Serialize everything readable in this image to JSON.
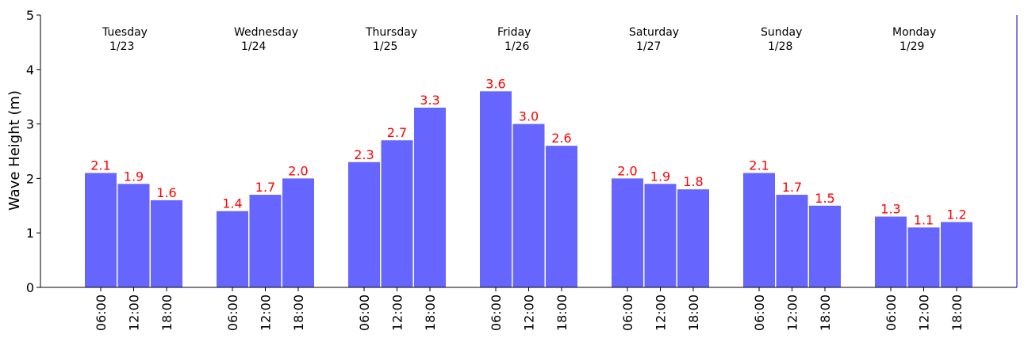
{
  "chart_data": {
    "type": "bar",
    "title": "",
    "xlabel": "",
    "ylabel": "Wave Height (m)",
    "ylim": [
      0,
      5
    ],
    "yticks": [
      "0",
      "1",
      "2",
      "3",
      "4",
      "5"
    ],
    "grid": false,
    "days": [
      {
        "name": "Tuesday",
        "date": "1/23",
        "times": [
          "06:00",
          "12:00",
          "18:00"
        ],
        "values": [
          2.1,
          1.9,
          1.6
        ],
        "labels": [
          "2.1",
          "1.9",
          "1.6"
        ]
      },
      {
        "name": "Wednesday",
        "date": "1/24",
        "times": [
          "06:00",
          "12:00",
          "18:00"
        ],
        "values": [
          1.4,
          1.7,
          2.0
        ],
        "labels": [
          "1.4",
          "1.7",
          "2.0"
        ]
      },
      {
        "name": "Thursday",
        "date": "1/25",
        "times": [
          "06:00",
          "12:00",
          "18:00"
        ],
        "values": [
          2.3,
          2.7,
          3.3
        ],
        "labels": [
          "2.3",
          "2.7",
          "3.3"
        ]
      },
      {
        "name": "Friday",
        "date": "1/26",
        "times": [
          "06:00",
          "12:00",
          "18:00"
        ],
        "values": [
          3.6,
          3.0,
          2.6
        ],
        "labels": [
          "3.6",
          "3.0",
          "2.6"
        ]
      },
      {
        "name": "Saturday",
        "date": "1/27",
        "times": [
          "06:00",
          "12:00",
          "18:00"
        ],
        "values": [
          2.0,
          1.9,
          1.8
        ],
        "labels": [
          "2.0",
          "1.9",
          "1.8"
        ]
      },
      {
        "name": "Sunday",
        "date": "1/28",
        "times": [
          "06:00",
          "12:00",
          "18:00"
        ],
        "values": [
          2.1,
          1.7,
          1.5
        ],
        "labels": [
          "2.1",
          "1.7",
          "1.5"
        ]
      },
      {
        "name": "Monday",
        "date": "1/29",
        "times": [
          "06:00",
          "12:00",
          "18:00"
        ],
        "values": [
          1.3,
          1.1,
          1.2
        ],
        "labels": [
          "1.3",
          "1.1",
          "1.2"
        ]
      }
    ],
    "colors": {
      "bar": "#6666ff",
      "label": "#ff0000",
      "axis": "#000000",
      "right_spine": "#0000cc"
    }
  }
}
